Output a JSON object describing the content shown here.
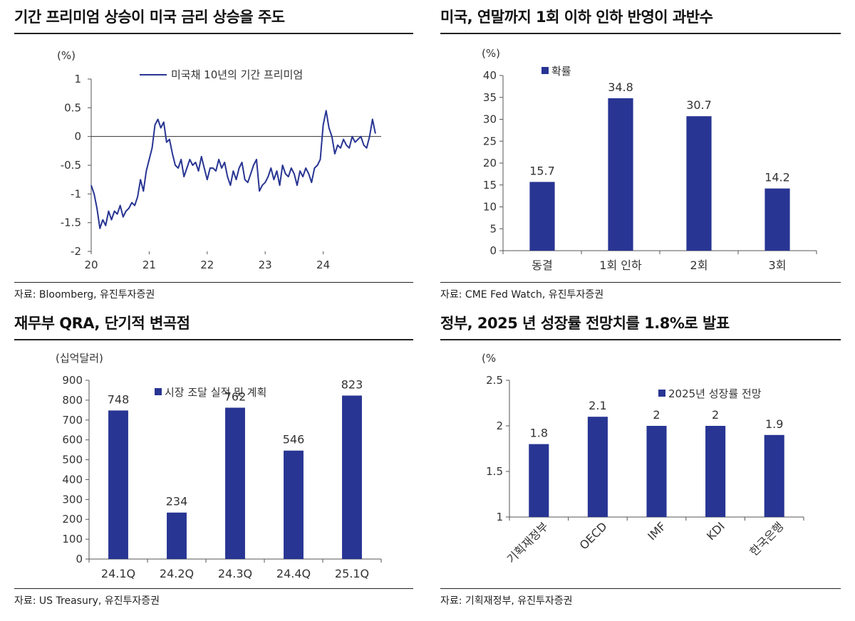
{
  "colors": {
    "bar": "#283593",
    "line": "#283593",
    "axis": "#555555",
    "text": "#333333"
  },
  "charts": [
    {
      "id": "term-premium",
      "title": "기간 프리미엄 상승이 미국 금리 상승을 주도",
      "source": "자료: Bloomberg, 유진투자증권",
      "chart_data": {
        "type": "line",
        "unit_label": "(%)",
        "ylim": [
          -2,
          1
        ],
        "yticks": [
          "1",
          "0.5",
          "0",
          "-0.5",
          "-1",
          "-1.5",
          "-2"
        ],
        "xticks": [
          "20",
          "21",
          "22",
          "23",
          "24"
        ],
        "xlim": [
          2020.0,
          2025.0
        ],
        "legend": "미국채 10년의 기간 프리미엄",
        "legend_position": "top",
        "series": [
          {
            "name": "미국채 10년의 기간 프리미엄",
            "x": [
              2020.0,
              2020.05,
              2020.1,
              2020.15,
              2020.2,
              2020.25,
              2020.3,
              2020.35,
              2020.4,
              2020.45,
              2020.5,
              2020.55,
              2020.6,
              2020.65,
              2020.7,
              2020.75,
              2020.8,
              2020.85,
              2020.9,
              2020.95,
              2021.0,
              2021.05,
              2021.1,
              2021.15,
              2021.2,
              2021.25,
              2021.3,
              2021.35,
              2021.4,
              2021.45,
              2021.5,
              2021.55,
              2021.6,
              2021.65,
              2021.7,
              2021.75,
              2021.8,
              2021.85,
              2021.9,
              2021.95,
              2022.0,
              2022.05,
              2022.1,
              2022.15,
              2022.2,
              2022.25,
              2022.3,
              2022.35,
              2022.4,
              2022.45,
              2022.5,
              2022.55,
              2022.6,
              2022.65,
              2022.7,
              2022.75,
              2022.8,
              2022.85,
              2022.9,
              2022.95,
              2023.0,
              2023.05,
              2023.1,
              2023.15,
              2023.2,
              2023.25,
              2023.3,
              2023.35,
              2023.4,
              2023.45,
              2023.5,
              2023.55,
              2023.6,
              2023.65,
              2023.7,
              2023.75,
              2023.8,
              2023.85,
              2023.9,
              2023.95,
              2024.0,
              2024.05,
              2024.1,
              2024.15,
              2024.2,
              2024.25,
              2024.3,
              2024.35,
              2024.4,
              2024.45,
              2024.5,
              2024.55,
              2024.6,
              2024.65,
              2024.7,
              2024.75,
              2024.8,
              2024.85,
              2024.9
            ],
            "y": [
              -0.85,
              -1.0,
              -1.25,
              -1.6,
              -1.45,
              -1.55,
              -1.3,
              -1.45,
              -1.3,
              -1.35,
              -1.2,
              -1.4,
              -1.3,
              -1.25,
              -1.15,
              -1.2,
              -1.05,
              -0.75,
              -0.95,
              -0.6,
              -0.4,
              -0.2,
              0.2,
              0.3,
              0.15,
              0.25,
              -0.1,
              -0.05,
              -0.3,
              -0.5,
              -0.55,
              -0.4,
              -0.7,
              -0.55,
              -0.4,
              -0.5,
              -0.45,
              -0.6,
              -0.35,
              -0.55,
              -0.75,
              -0.55,
              -0.55,
              -0.6,
              -0.4,
              -0.55,
              -0.45,
              -0.7,
              -0.85,
              -0.6,
              -0.75,
              -0.55,
              -0.45,
              -0.75,
              -0.8,
              -0.65,
              -0.5,
              -0.4,
              -0.95,
              -0.85,
              -0.8,
              -0.7,
              -0.55,
              -0.75,
              -0.6,
              -0.85,
              -0.5,
              -0.65,
              -0.7,
              -0.55,
              -0.65,
              -0.85,
              -0.6,
              -0.7,
              -0.55,
              -0.65,
              -0.8,
              -0.55,
              -0.5,
              -0.4,
              0.2,
              0.45,
              0.15,
              0.0,
              -0.3,
              -0.15,
              -0.2,
              -0.05,
              -0.15,
              -0.2,
              0.0,
              -0.1,
              -0.05,
              0.0,
              -0.15,
              -0.2,
              0.0,
              0.3,
              0.05
            ]
          }
        ]
      }
    },
    {
      "id": "fed-cut-probability",
      "title": "미국, 연말까지 1회 이하 인하 반영이 과반수",
      "source": "자료: CME Fed Watch, 유진투자증권",
      "chart_data": {
        "type": "bar",
        "unit_label": "(%)",
        "categories": [
          "동결",
          "1회 인하",
          "2회",
          "3회"
        ],
        "values": [
          15.7,
          34.8,
          30.7,
          14.2
        ],
        "data_labels": [
          "15.7",
          "34.8",
          "30.7",
          "14.2"
        ],
        "ylim": [
          0,
          40
        ],
        "yticks": [
          "40",
          "35",
          "30",
          "25",
          "20",
          "15",
          "10",
          "5",
          "0"
        ],
        "legend": "확률",
        "legend_position": "top-left",
        "series": [
          {
            "name": "확률",
            "values": [
              15.7,
              34.8,
              30.7,
              14.2
            ]
          }
        ]
      }
    },
    {
      "id": "treasury-qra",
      "title": "재무부 QRA, 단기적 변곡점",
      "source": "자료: US Treasury, 유진투자증권",
      "chart_data": {
        "type": "bar",
        "unit_label": "(십억달러)",
        "categories": [
          "24.1Q",
          "24.2Q",
          "24.3Q",
          "24.4Q",
          "25.1Q"
        ],
        "values": [
          748,
          234,
          762,
          546,
          823
        ],
        "data_labels": [
          "748",
          "234",
          "762",
          "546",
          "823"
        ],
        "ylim": [
          0,
          900
        ],
        "yticks": [
          "900",
          "800",
          "700",
          "600",
          "500",
          "400",
          "300",
          "200",
          "100",
          "0"
        ],
        "legend": "시장 조달 실적 및 계획",
        "legend_position": "top",
        "series": [
          {
            "name": "시장 조달 실적 및 계획",
            "values": [
              748,
              234,
              762,
              546,
              823
            ]
          }
        ]
      }
    },
    {
      "id": "growth-forecast",
      "title": "정부, 2025 년 성장률 전망치를 1.8%로 발표",
      "source": "자료: 기획재정부, 유진투자증권",
      "chart_data": {
        "type": "bar",
        "unit_label": "(%",
        "categories": [
          "기획재정부",
          "OECD",
          "IMF",
          "KDI",
          "한국은행"
        ],
        "values": [
          1.8,
          2.1,
          2.0,
          2.0,
          1.9
        ],
        "data_labels": [
          "1.8",
          "2.1",
          "2",
          "2",
          "1.9"
        ],
        "ylim": [
          1,
          2.5
        ],
        "yticks": [
          "2.5",
          "2",
          "1.5",
          "1"
        ],
        "legend": "2025년 성장률 전망",
        "legend_position": "top-right",
        "series": [
          {
            "name": "2025년 성장률 전망",
            "values": [
              1.8,
              2.1,
              2.0,
              2.0,
              1.9
            ]
          }
        ]
      }
    }
  ]
}
